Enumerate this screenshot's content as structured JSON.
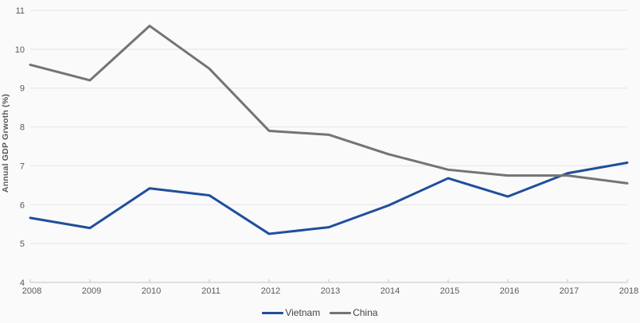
{
  "chart_data": {
    "type": "line",
    "title": "",
    "xlabel": "",
    "ylabel": "Annual GDP Grwoth (%)",
    "x": [
      2008,
      2009,
      2010,
      2011,
      2012,
      2013,
      2014,
      2015,
      2016,
      2017,
      2018
    ],
    "ylim": [
      4,
      11
    ],
    "y_tick_step": 1,
    "grid": "horizontal",
    "legend_position": "bottom-center",
    "series": [
      {
        "name": "Vietnam",
        "color": "#1F4E9C",
        "values": [
          5.66,
          5.4,
          6.42,
          6.24,
          5.25,
          5.42,
          5.98,
          6.68,
          6.21,
          6.81,
          7.08
        ]
      },
      {
        "name": "China",
        "color": "#747474",
        "values": [
          9.6,
          9.2,
          10.6,
          9.5,
          7.9,
          7.8,
          7.3,
          6.9,
          6.75,
          6.75,
          6.55
        ]
      }
    ],
    "colors": {
      "background": "#FAFAFA",
      "gridline": "#E4E4E4",
      "axis_line": "#C4C4C4",
      "tick_label": "#595959",
      "legend_text": "#444444"
    }
  }
}
